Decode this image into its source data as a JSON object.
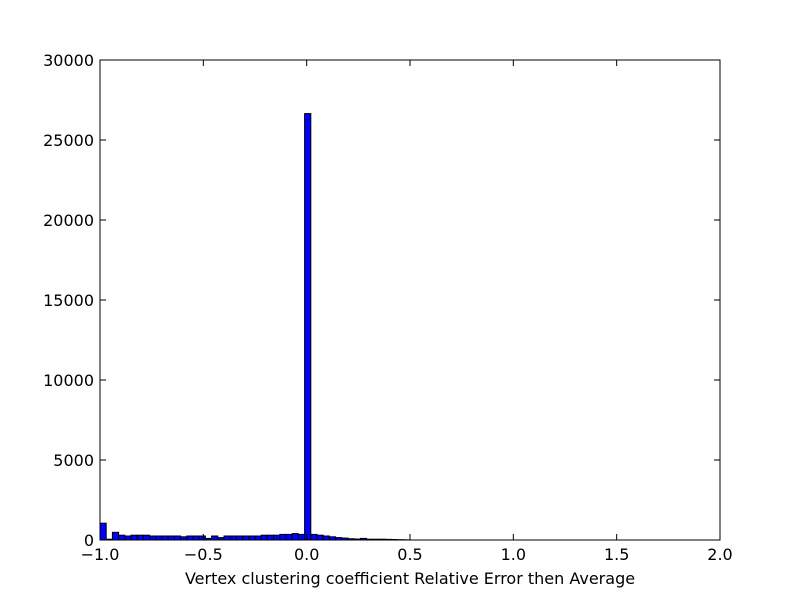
{
  "chart_data": {
    "type": "bar",
    "subtype": "histogram",
    "title": "",
    "xlabel": "Vertex clustering coefficient Relative Error then Average",
    "ylabel": "",
    "xlim": [
      -1.0,
      2.0
    ],
    "ylim": [
      0,
      30000
    ],
    "xticks": [
      -1.0,
      -0.5,
      0.0,
      0.5,
      1.0,
      1.5,
      2.0
    ],
    "xtick_labels": [
      "−1.0",
      "−0.5",
      "0.0",
      "0.5",
      "1.0",
      "1.5",
      "2.0"
    ],
    "yticks": [
      0,
      5000,
      10000,
      15000,
      20000,
      25000,
      30000
    ],
    "ytick_labels": [
      "0",
      "5000",
      "10000",
      "15000",
      "20000",
      "25000",
      "30000"
    ],
    "grid": false,
    "bar_color": "#0000ff",
    "edge_color": "#000000",
    "bin_width": 0.03,
    "bins": [
      {
        "x0": -1.0,
        "count": 1050
      },
      {
        "x0": -0.97,
        "count": 50
      },
      {
        "x0": -0.94,
        "count": 480
      },
      {
        "x0": -0.91,
        "count": 300
      },
      {
        "x0": -0.88,
        "count": 250
      },
      {
        "x0": -0.85,
        "count": 300
      },
      {
        "x0": -0.82,
        "count": 300
      },
      {
        "x0": -0.79,
        "count": 300
      },
      {
        "x0": -0.76,
        "count": 250
      },
      {
        "x0": -0.73,
        "count": 250
      },
      {
        "x0": -0.7,
        "count": 250
      },
      {
        "x0": -0.67,
        "count": 250
      },
      {
        "x0": -0.64,
        "count": 250
      },
      {
        "x0": -0.61,
        "count": 200
      },
      {
        "x0": -0.58,
        "count": 250
      },
      {
        "x0": -0.55,
        "count": 250
      },
      {
        "x0": -0.52,
        "count": 250
      },
      {
        "x0": -0.49,
        "count": 100
      },
      {
        "x0": -0.46,
        "count": 250
      },
      {
        "x0": -0.43,
        "count": 150
      },
      {
        "x0": -0.4,
        "count": 250
      },
      {
        "x0": -0.37,
        "count": 250
      },
      {
        "x0": -0.34,
        "count": 250
      },
      {
        "x0": -0.31,
        "count": 250
      },
      {
        "x0": -0.28,
        "count": 250
      },
      {
        "x0": -0.25,
        "count": 250
      },
      {
        "x0": -0.22,
        "count": 300
      },
      {
        "x0": -0.19,
        "count": 300
      },
      {
        "x0": -0.16,
        "count": 300
      },
      {
        "x0": -0.13,
        "count": 350
      },
      {
        "x0": -0.1,
        "count": 350
      },
      {
        "x0": -0.07,
        "count": 400
      },
      {
        "x0": -0.04,
        "count": 350
      },
      {
        "x0": -0.01,
        "count": 26650
      },
      {
        "x0": 0.02,
        "count": 350
      },
      {
        "x0": 0.05,
        "count": 300
      },
      {
        "x0": 0.08,
        "count": 250
      },
      {
        "x0": 0.11,
        "count": 200
      },
      {
        "x0": 0.14,
        "count": 150
      },
      {
        "x0": 0.17,
        "count": 120
      },
      {
        "x0": 0.2,
        "count": 80
      },
      {
        "x0": 0.23,
        "count": 60
      },
      {
        "x0": 0.26,
        "count": 100
      },
      {
        "x0": 0.29,
        "count": 50
      },
      {
        "x0": 0.32,
        "count": 50
      },
      {
        "x0": 0.35,
        "count": 50
      },
      {
        "x0": 0.38,
        "count": 40
      },
      {
        "x0": 0.41,
        "count": 30
      },
      {
        "x0": 0.44,
        "count": 20
      },
      {
        "x0": 0.47,
        "count": 10
      }
    ]
  }
}
